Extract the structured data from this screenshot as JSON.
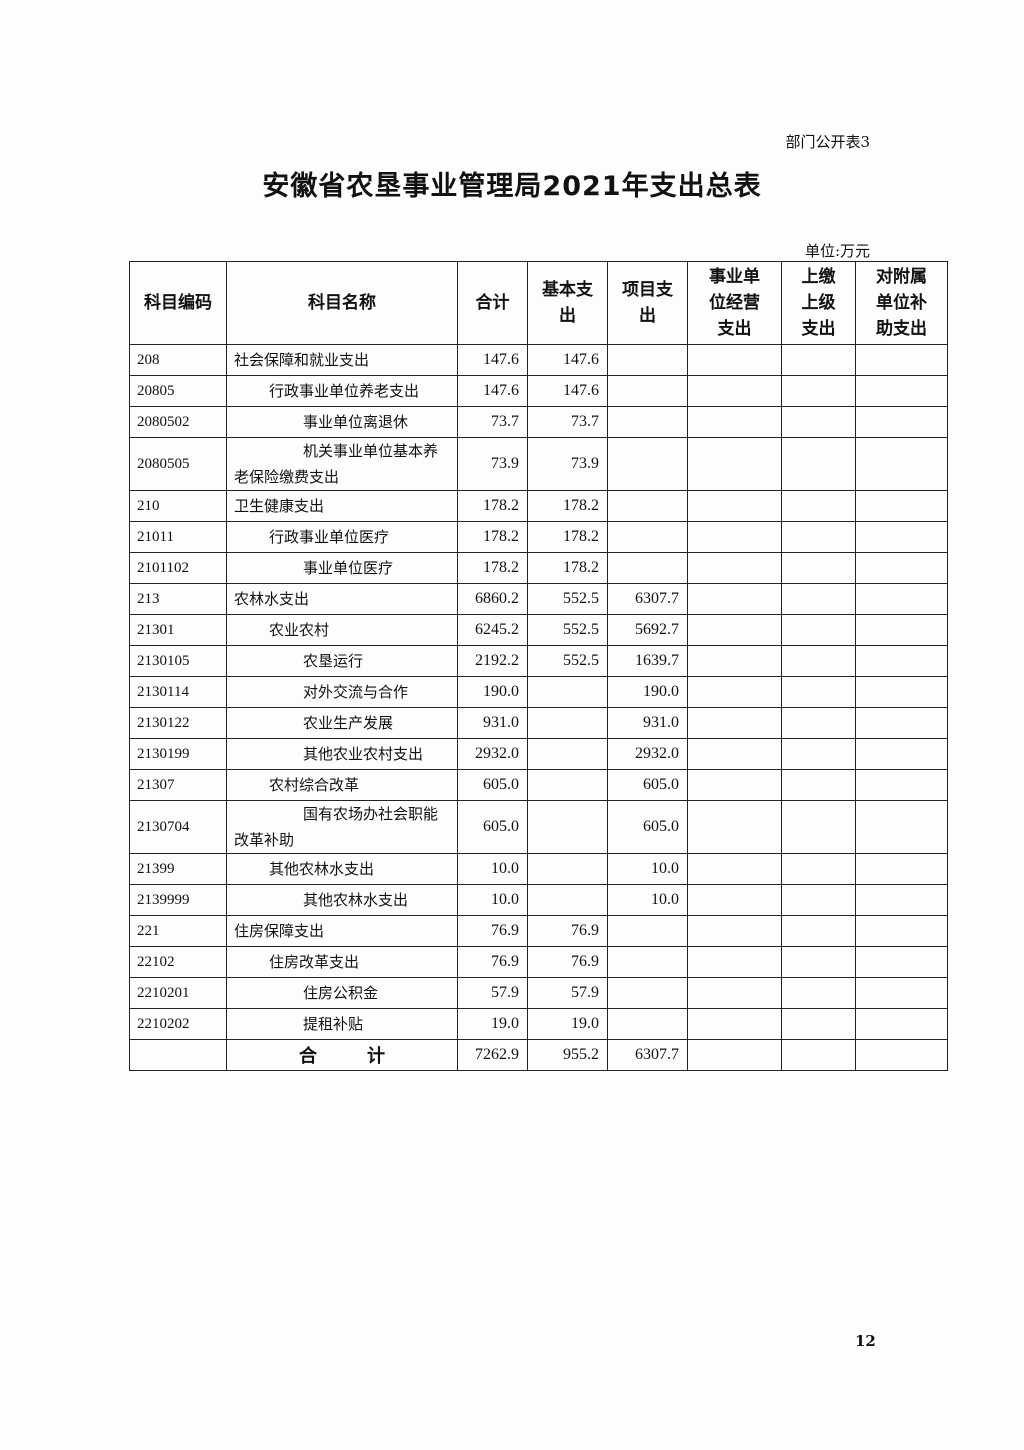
{
  "doc": {
    "tag": "部门公开表3",
    "title": "安徽省农垦事业管理局2021年支出总表",
    "unit": "单位:万元",
    "page_number": "12"
  },
  "table": {
    "headers": [
      "科目编码",
      "科目名称",
      "合计",
      "基本支出",
      "项目支出",
      "事业单位经营支出",
      "上缴上级支出",
      "对附属单位补助支出"
    ],
    "rows": [
      {
        "code": "208",
        "name": "社会保障和就业支出",
        "level": 0,
        "total": "147.6",
        "basic": "147.6",
        "project": ""
      },
      {
        "code": "20805",
        "name": "行政事业单位养老支出",
        "level": 1,
        "total": "147.6",
        "basic": "147.6",
        "project": ""
      },
      {
        "code": "2080502",
        "name": "事业单位离退休",
        "level": 2,
        "total": "73.7",
        "basic": "73.7",
        "project": ""
      },
      {
        "code": "2080505",
        "name": "机关事业单位基本养老保险缴费支出",
        "level": 2,
        "total": "73.9",
        "basic": "73.9",
        "project": "",
        "tall": true
      },
      {
        "code": "210",
        "name": "卫生健康支出",
        "level": 0,
        "total": "178.2",
        "basic": "178.2",
        "project": ""
      },
      {
        "code": "21011",
        "name": "行政事业单位医疗",
        "level": 1,
        "total": "178.2",
        "basic": "178.2",
        "project": ""
      },
      {
        "code": "2101102",
        "name": "事业单位医疗",
        "level": 2,
        "total": "178.2",
        "basic": "178.2",
        "project": ""
      },
      {
        "code": "213",
        "name": "农林水支出",
        "level": 0,
        "total": "6860.2",
        "basic": "552.5",
        "project": "6307.7"
      },
      {
        "code": "21301",
        "name": "农业农村",
        "level": 1,
        "total": "6245.2",
        "basic": "552.5",
        "project": "5692.7"
      },
      {
        "code": "2130105",
        "name": "农垦运行",
        "level": 2,
        "total": "2192.2",
        "basic": "552.5",
        "project": "1639.7"
      },
      {
        "code": "2130114",
        "name": "对外交流与合作",
        "level": 2,
        "total": "190.0",
        "basic": "",
        "project": "190.0"
      },
      {
        "code": "2130122",
        "name": "农业生产发展",
        "level": 2,
        "total": "931.0",
        "basic": "",
        "project": "931.0"
      },
      {
        "code": "2130199",
        "name": "其他农业农村支出",
        "level": 2,
        "total": "2932.0",
        "basic": "",
        "project": "2932.0"
      },
      {
        "code": "21307",
        "name": "农村综合改革",
        "level": 1,
        "total": "605.0",
        "basic": "",
        "project": "605.0"
      },
      {
        "code": "2130704",
        "name": "国有农场办社会职能改革补助",
        "level": 2,
        "total": "605.0",
        "basic": "",
        "project": "605.0",
        "tall": true
      },
      {
        "code": "21399",
        "name": "其他农林水支出",
        "level": 1,
        "total": "10.0",
        "basic": "",
        "project": "10.0"
      },
      {
        "code": "2139999",
        "name": "其他农林水支出",
        "level": 2,
        "total": "10.0",
        "basic": "",
        "project": "10.0"
      },
      {
        "code": "221",
        "name": "住房保障支出",
        "level": 0,
        "total": "76.9",
        "basic": "76.9",
        "project": ""
      },
      {
        "code": "22102",
        "name": "住房改革支出",
        "level": 1,
        "total": "76.9",
        "basic": "76.9",
        "project": ""
      },
      {
        "code": "2210201",
        "name": "住房公积金",
        "level": 2,
        "total": "57.9",
        "basic": "57.9",
        "project": ""
      },
      {
        "code": "2210202",
        "name": "提租补贴",
        "level": 2,
        "total": "19.0",
        "basic": "19.0",
        "project": ""
      }
    ],
    "total_row": {
      "label": "合计",
      "total": "7262.9",
      "basic": "955.2",
      "project": "6307.7"
    }
  }
}
